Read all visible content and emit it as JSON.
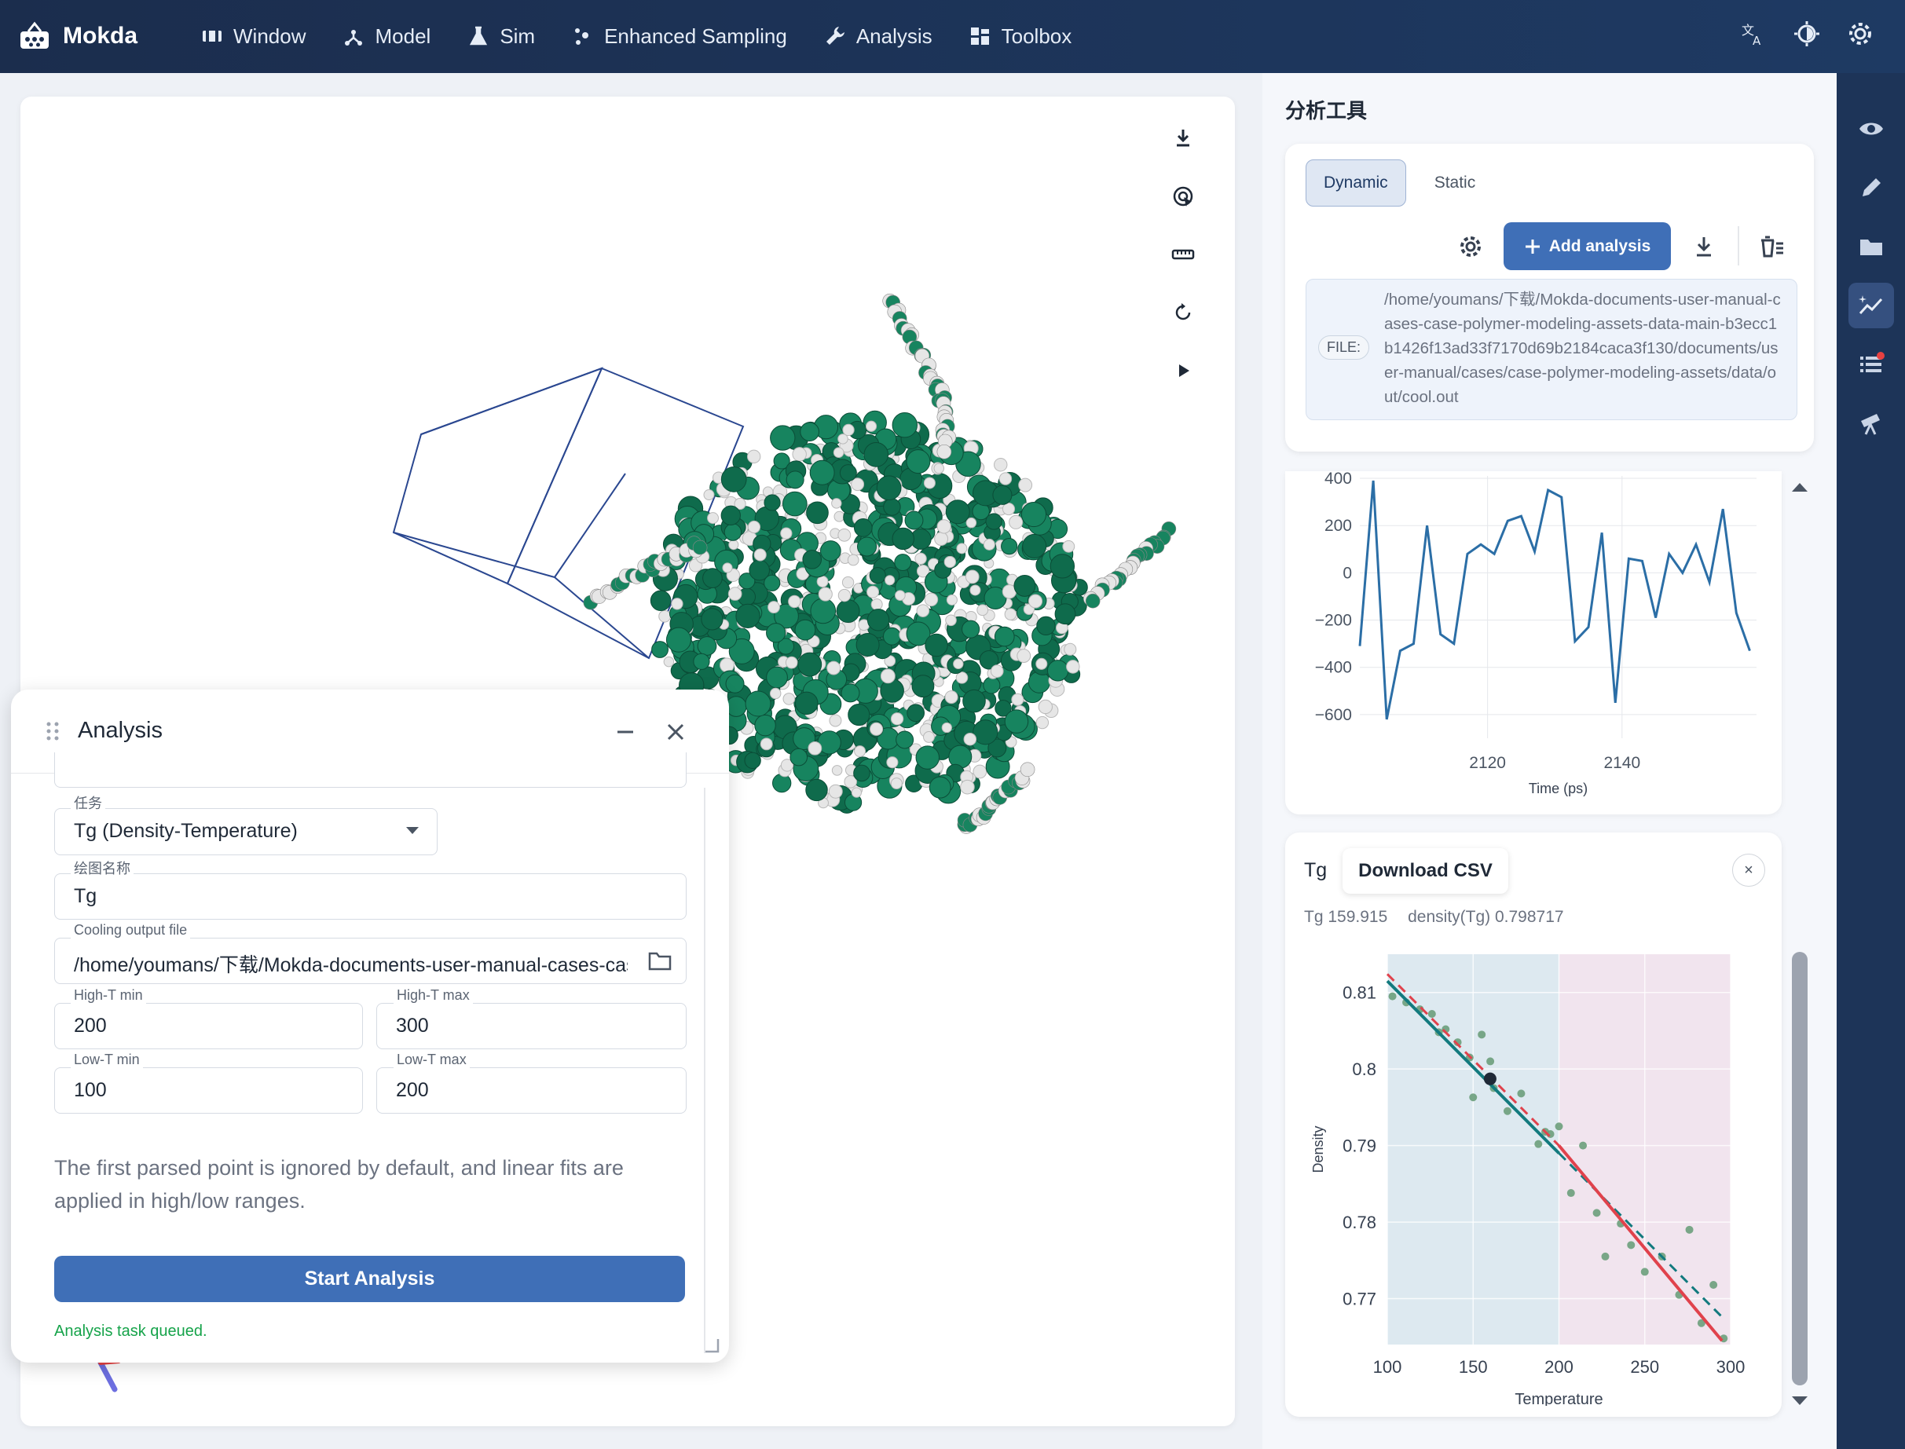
{
  "app": {
    "name": "Mokda"
  },
  "menu": [
    "Window",
    "Model",
    "Sim",
    "Enhanced Sampling",
    "Analysis",
    "Toolbox"
  ],
  "analysis_panel": {
    "title": "Analysis",
    "task_label": "任务",
    "task_value": "Tg (Density-Temperature)",
    "plot_name_label": "绘图名称",
    "plot_name_value": "Tg",
    "cooling_label": "Cooling output file",
    "cooling_value": "/home/youmans/下载/Mokda-documents-user-manual-cases-case-polymer-modeling-assets-data-main",
    "high_t_min_label": "High-T min",
    "high_t_min": "200",
    "high_t_max_label": "High-T max",
    "high_t_max": "300",
    "low_t_min_label": "Low-T min",
    "low_t_min": "100",
    "low_t_max_label": "Low-T max",
    "low_t_max": "200",
    "hint": "The first parsed point is ignored by default, and linear fits are applied in high/low ranges.",
    "start_button": "Start Analysis",
    "status": "Analysis task queued."
  },
  "right_panel": {
    "title": "分析工具",
    "tabs": [
      "Dynamic",
      "Static"
    ],
    "active_tab": "Dynamic",
    "add_button": "Add analysis",
    "file_tag": "FILE:",
    "file_path": "/home/youmans/下载/Mokda-documents-user-manual-cases-case-polymer-modeling-assets-data-main-b3ecc1b1426f13ad33f7170d69b2184caca3f130/documents/user-manual/cases/case-polymer-modeling-assets/data/out/cool.out"
  },
  "tg_card": {
    "label": "Tg",
    "download_button": "Download CSV",
    "close": "×",
    "tg_stat": "Tg 159.915",
    "density_stat": "density(Tg) 0.798717"
  },
  "chart_data": [
    {
      "type": "line",
      "xlabel": "Time (ps)",
      "ylabel": "",
      "xlim": [
        2101,
        2160
      ],
      "ylim": [
        -700,
        410
      ],
      "x_ticks": [
        2120,
        2140
      ],
      "y_ticks": [
        400,
        200,
        0,
        -200,
        -400,
        -600
      ],
      "y_tick_labels": [
        "400",
        "200",
        "0",
        "−200",
        "−400",
        "−600"
      ],
      "series": [
        {
          "color": "#2b6ea6",
          "x": [
            2101,
            2103,
            2105,
            2107,
            2109,
            2111,
            2113,
            2115,
            2117,
            2119,
            2121,
            2123,
            2125,
            2127,
            2129,
            2131,
            2133,
            2135,
            2137,
            2139,
            2141,
            2143,
            2145,
            2147,
            2149,
            2151,
            2153,
            2155,
            2157,
            2159
          ],
          "y": [
            -310,
            390,
            -620,
            -330,
            -300,
            200,
            -260,
            -300,
            80,
            120,
            80,
            220,
            240,
            90,
            350,
            320,
            -290,
            -230,
            170,
            -550,
            60,
            50,
            -190,
            80,
            0,
            120,
            -40,
            270,
            -170,
            -330
          ]
        }
      ]
    },
    {
      "type": "scatter",
      "xlabel": "Temperature",
      "ylabel": "Density",
      "xlim": [
        100,
        300
      ],
      "ylim": [
        0.764,
        0.815
      ],
      "x_ticks": [
        100,
        150,
        200,
        250,
        300
      ],
      "y_ticks": [
        0.81,
        0.8,
        0.79,
        0.78,
        0.77
      ],
      "regions": [
        {
          "from": 100,
          "to": 200,
          "color": "#dde9f0"
        },
        {
          "from": 200,
          "to": 300,
          "color": "#f1e4ee"
        }
      ],
      "points": {
        "color": "#6b9e7b",
        "x": [
          103,
          111,
          119,
          126,
          130,
          134,
          141,
          148,
          150,
          155,
          160,
          162,
          170,
          178,
          188,
          192,
          195,
          200,
          207,
          214,
          222,
          227,
          236,
          242,
          250,
          260,
          270,
          276,
          283,
          290,
          296
        ],
        "y": [
          0.8095,
          0.8087,
          0.8078,
          0.8072,
          0.8048,
          0.8052,
          0.8035,
          0.8015,
          0.7963,
          0.8045,
          0.801,
          0.7975,
          0.7945,
          0.7968,
          0.7902,
          0.7918,
          0.7915,
          0.7925,
          0.7838,
          0.79,
          0.7812,
          0.7755,
          0.7798,
          0.777,
          0.7735,
          0.7755,
          0.7705,
          0.779,
          0.7668,
          0.7718,
          0.7648
        ]
      },
      "tg_point": {
        "x": 159.915,
        "y": 0.798717,
        "color": "#1f2937"
      },
      "fits": [
        {
          "name": "low-T fit",
          "color": "#127a7e",
          "dash": false,
          "x": [
            100,
            200
          ],
          "y": [
            0.8115,
            0.789
          ]
        },
        {
          "name": "low-T fit extension",
          "color": "#127a7e",
          "dash": true,
          "x": [
            200,
            295
          ],
          "y": [
            0.789,
            0.7676
          ]
        },
        {
          "name": "high-T fit",
          "color": "#e0424c",
          "dash": false,
          "x": [
            200,
            295
          ],
          "y": [
            0.79,
            0.7645
          ]
        },
        {
          "name": "high-T fit extension",
          "color": "#e0424c",
          "dash": true,
          "x": [
            100,
            200
          ],
          "y": [
            0.8124,
            0.79
          ]
        }
      ]
    }
  ]
}
